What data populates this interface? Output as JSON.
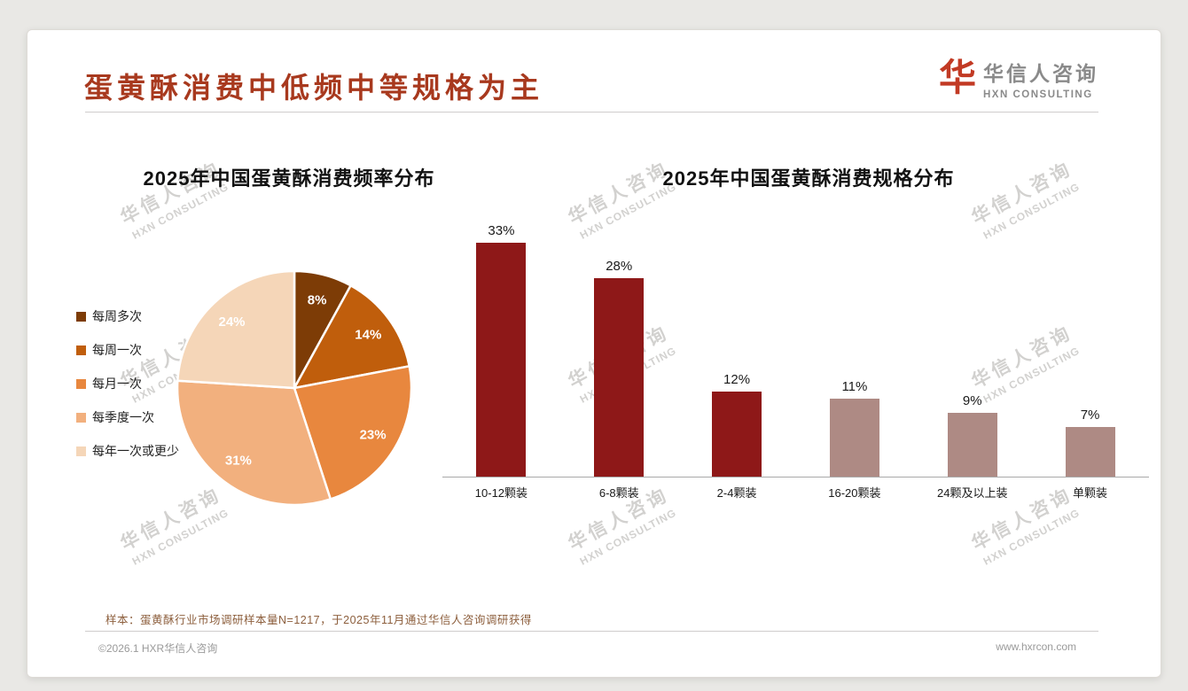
{
  "page": {
    "title": "蛋黄酥消费中低频中等规格为主",
    "sample_note": "样本：蛋黄酥行业市场调研样本量N=1217，于2025年11月通过华信人咨询调研获得",
    "footer_left": "©2026.1 HXR华信人咨询",
    "footer_right": "www.hxrcon.com"
  },
  "theme": {
    "title_color": "#A8391E",
    "logo_red": "#C23A24",
    "bar_primary": "#8E1818",
    "bar_secondary": "#AE8A84"
  },
  "logo": {
    "mark": "华",
    "name_cn": "华信人咨询",
    "name_en": "HXN CONSULTING"
  },
  "watermark": {
    "line1": "华信人咨询",
    "line2": "HXN CONSULTING"
  },
  "chart_data": [
    {
      "type": "pie",
      "title": "2025年中国蛋黄酥消费频率分布",
      "labels": [
        "每周多次",
        "每周一次",
        "每月一次",
        "每季度一次",
        "每年一次或更少"
      ],
      "values": [
        8,
        14,
        23,
        31,
        24
      ],
      "value_suffix": "%",
      "colors": [
        "#7D3C06",
        "#C05E0C",
        "#E8873E",
        "#F2B07E",
        "#F5D6B8"
      ],
      "legend_position": "left",
      "start_angle_deg": -90,
      "direction": "clockwise"
    },
    {
      "type": "bar",
      "title": "2025年中国蛋黄酥消费规格分布",
      "categories": [
        "10-12颗装",
        "6-8颗装",
        "2-4颗装",
        "16-20颗装",
        "24颗及以上装",
        "单颗装"
      ],
      "values": [
        33,
        28,
        12,
        11,
        9,
        7
      ],
      "value_suffix": "%",
      "colors": [
        "#8E1818",
        "#8E1818",
        "#8E1818",
        "#AE8A84",
        "#AE8A84",
        "#AE8A84"
      ],
      "ylim": [
        0,
        35
      ],
      "grid": false,
      "value_labels": "above"
    }
  ]
}
